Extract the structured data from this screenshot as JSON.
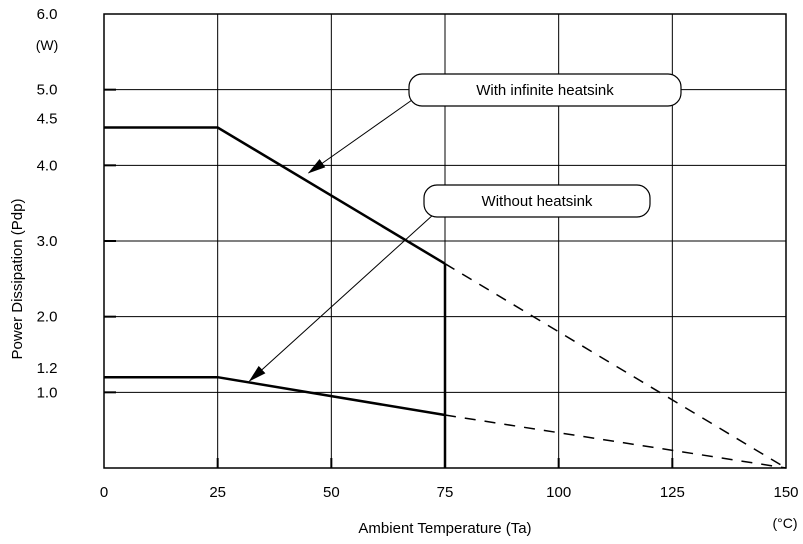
{
  "chart_data": {
    "type": "line",
    "xlabel": "Ambient Temperature (Ta)",
    "x_unit": "(°C)",
    "ylabel": "Power Dissipation (Pdp)",
    "y_unit": "(W)",
    "xlim": [
      0,
      150
    ],
    "ylim": [
      0,
      6.0
    ],
    "x_ticks": [
      0,
      25,
      50,
      75,
      100,
      125,
      150
    ],
    "x_tick_labels": [
      "0",
      "25",
      "50",
      "75",
      "100",
      "125",
      "150"
    ],
    "y_ticks": [
      1.0,
      2.0,
      3.0,
      4.0,
      5.0,
      6.0
    ],
    "y_tick_labels": [
      "1.0",
      "2.0",
      "3.0",
      "4.0",
      "5.0",
      "6.0"
    ],
    "y_extra_labels": [
      {
        "value": 4.5,
        "label": "4.5"
      },
      {
        "value": 1.2,
        "label": "1.2"
      }
    ],
    "grid": true,
    "series": [
      {
        "name": "With infinite heatsink",
        "points": [
          [
            0,
            4.5
          ],
          [
            25,
            4.5
          ],
          [
            75,
            2.7
          ]
        ],
        "extension": [
          [
            75,
            2.7
          ],
          [
            150,
            0
          ]
        ],
        "drop": [
          [
            75,
            2.7
          ],
          [
            75,
            0
          ]
        ],
        "callout_target": [
          45,
          3.9
        ],
        "color": "#000000"
      },
      {
        "name": "Without heatsink",
        "points": [
          [
            0,
            1.2
          ],
          [
            25,
            1.2
          ],
          [
            75,
            0.7
          ]
        ],
        "extension": [
          [
            75,
            0.7
          ],
          [
            150,
            0
          ]
        ],
        "callout_target": [
          32,
          1.15
        ],
        "color": "#000000"
      }
    ]
  }
}
